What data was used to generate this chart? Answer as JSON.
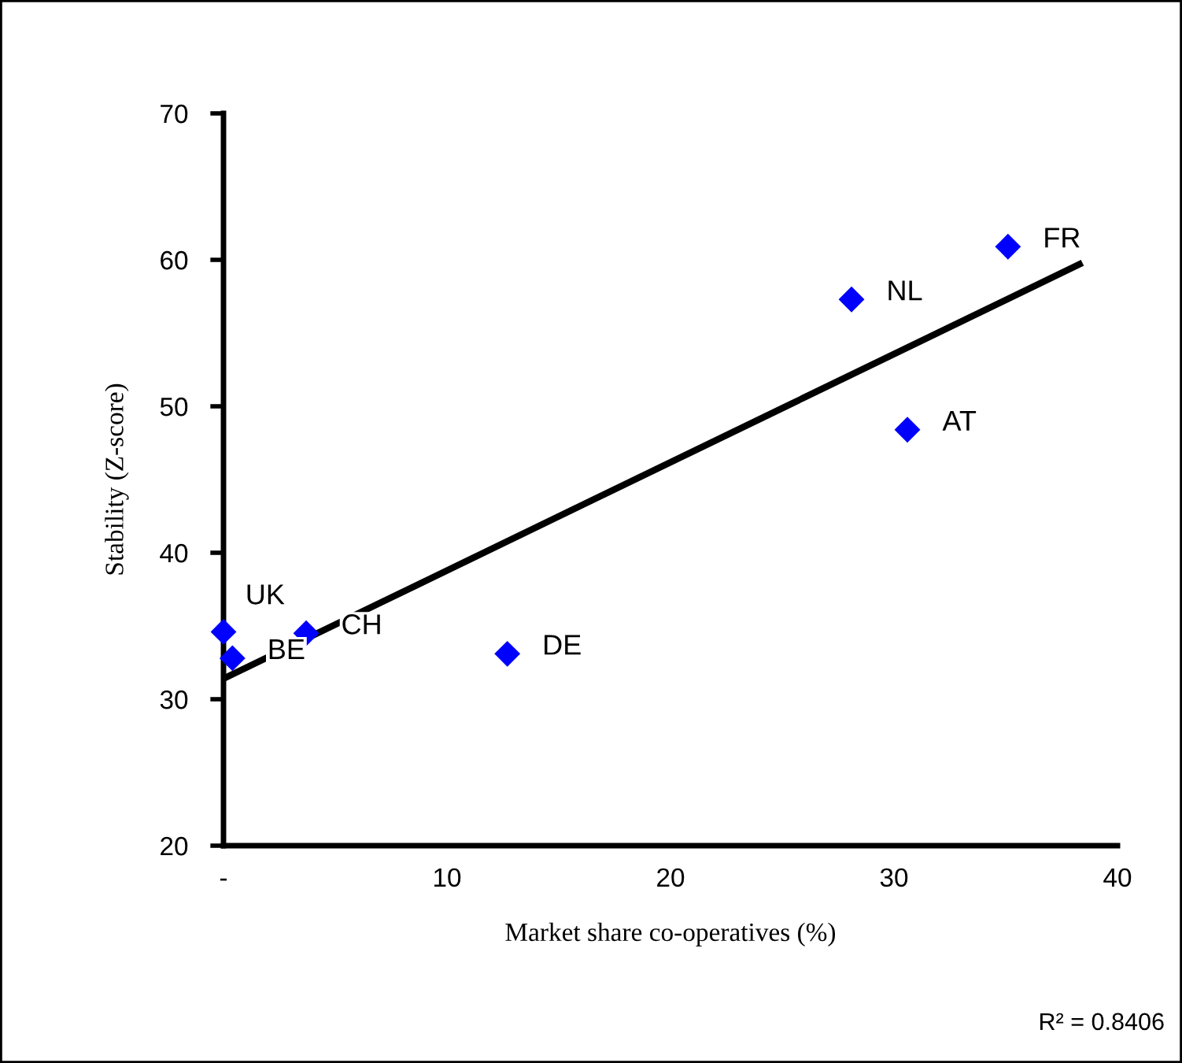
{
  "chart_data": {
    "type": "scatter",
    "xlabel": "Market share co-operatives (%)",
    "ylabel": "Stability (Z-score)",
    "xlim": [
      0,
      40
    ],
    "ylim": [
      20,
      70
    ],
    "xticks": [
      {
        "value": 0,
        "label": "-"
      },
      10,
      20,
      30,
      40
    ],
    "yticks": [
      20,
      30,
      40,
      50,
      60,
      70
    ],
    "grid": false,
    "legend": false,
    "marker": "diamond",
    "series": [
      {
        "color": "#0000ff",
        "x": [
          0,
          0.4,
          3.7,
          12.7,
          28.1,
          30.6,
          35.1
        ],
        "values": [
          34.6,
          32.8,
          34.5,
          33.1,
          57.3,
          48.4,
          60.9
        ]
      },
      {
        "type": "line",
        "color": "#000000",
        "x": [
          0,
          38.3
        ],
        "values": [
          31.4,
          59.7
        ],
        "marker": "none",
        "line_style": "solid"
      }
    ],
    "annotations": [
      {
        "text": "UK",
        "x": 0,
        "y": 34.6
      },
      {
        "text": "BE",
        "x": 0.4,
        "y": 32.8
      },
      {
        "text": "CH",
        "x": 3.7,
        "y": 34.5
      },
      {
        "text": "DE",
        "x": 12.7,
        "y": 33.1
      },
      {
        "text": "NL",
        "x": 28.1,
        "y": 57.3
      },
      {
        "text": "AT",
        "x": 30.6,
        "y": 48.4
      },
      {
        "text": "FR",
        "x": 35.1,
        "y": 60.9
      },
      "R² = 0.8406"
    ]
  }
}
